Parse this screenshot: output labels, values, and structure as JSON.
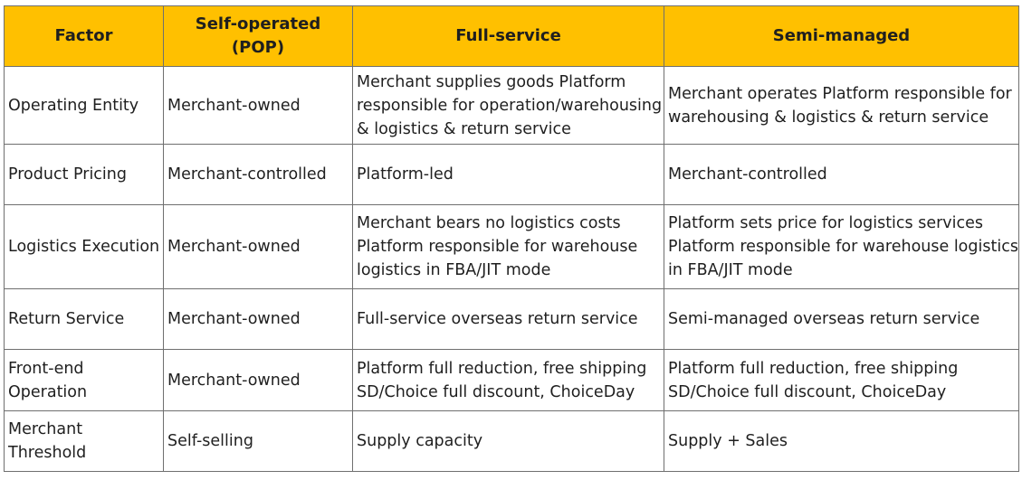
{
  "table": {
    "headers": [
      "Factor",
      "Self-operated (POP)",
      "Full-service",
      "Semi-managed"
    ],
    "rows": [
      {
        "factor": [
          "Operating Entity"
        ],
        "pop": [
          "Merchant-owned"
        ],
        "full": [
          "Merchant supplies goods Platform",
          "responsible for operation/warehousing",
          "& logistics & return service"
        ],
        "semi": [
          "Merchant operates Platform responsible for",
          "warehousing & logistics & return service"
        ]
      },
      {
        "factor": [
          "Product Pricing"
        ],
        "pop": [
          "Merchant-controlled"
        ],
        "full": [
          "Platform-led"
        ],
        "semi": [
          "Merchant-controlled"
        ]
      },
      {
        "factor": [
          "Logistics Execution"
        ],
        "pop": [
          "Merchant-owned"
        ],
        "full": [
          "Merchant bears no logistics costs",
          "Platform responsible for warehouse",
          "logistics in FBA/JIT mode"
        ],
        "semi": [
          "Platform sets price for logistics services",
          "Platform responsible for warehouse logistics",
          "in FBA/JIT mode"
        ]
      },
      {
        "factor": [
          "Return Service"
        ],
        "pop": [
          "Merchant-owned"
        ],
        "full": [
          "Full-service overseas return service"
        ],
        "semi": [
          "Semi-managed overseas return service"
        ]
      },
      {
        "factor": [
          "Front-end",
          "Operation"
        ],
        "pop": [
          "Merchant-owned"
        ],
        "full": [
          "Platform full reduction, free shipping",
          "SD/Choice full discount, ChoiceDay"
        ],
        "semi": [
          "Platform full reduction, free shipping",
          "SD/Choice full discount, ChoiceDay"
        ]
      },
      {
        "factor": [
          "Merchant",
          "Threshold"
        ],
        "pop": [
          "Self-selling"
        ],
        "full": [
          "Supply capacity"
        ],
        "semi": [
          "Supply + Sales"
        ]
      }
    ]
  },
  "colors": {
    "header_bg": "#ffc000",
    "border": "#6f6f6f",
    "text": "#1f1f1f"
  }
}
